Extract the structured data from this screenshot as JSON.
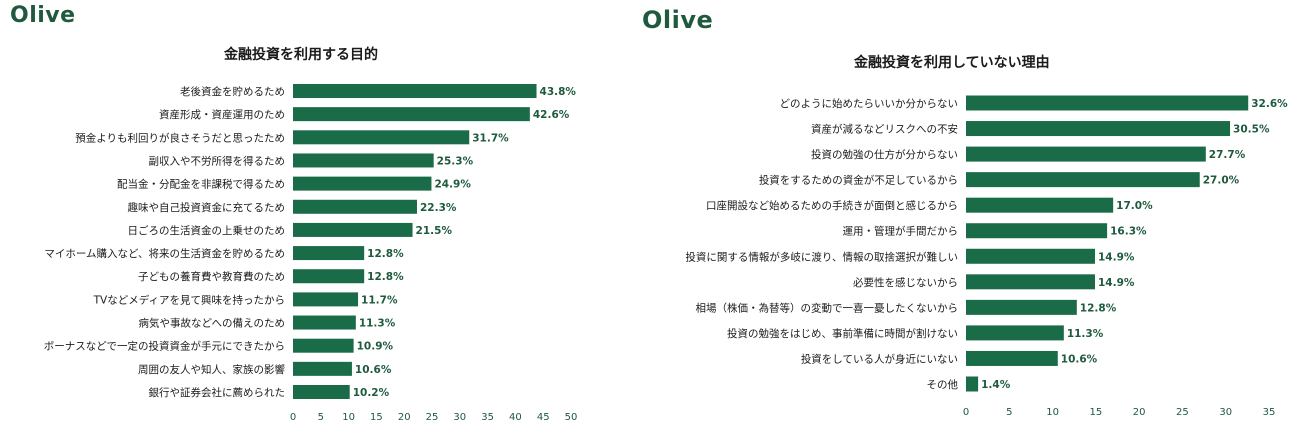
{
  "colors": {
    "bar": "#1a6b47",
    "brand": "#1f5a3e"
  },
  "chart_data": [
    {
      "type": "bar",
      "orientation": "horizontal",
      "brand": "Olive",
      "title": "金融投資を利用する目的",
      "categories": [
        "老後資金を貯めるため",
        "資産形成・資産運用のため",
        "預金よりも利回りが良さそうだと思ったため",
        "副収入や不労所得を得るため",
        "配当金・分配金を非課税で得るため",
        "趣味や自己投資資金に充てるため",
        "日ごろの生活資金の上乗せのため",
        "マイホーム購入など、将来の生活資金を貯めるため",
        "子どもの養育費や教育費のため",
        "TVなどメディアを見て興味を持ったから",
        "病気や事故などへの備えのため",
        "ボーナスなどで一定の投資資金が手元にできたから",
        "周囲の友人や知人、家族の影響",
        "銀行や証券会社に薦められた"
      ],
      "values": [
        43.8,
        42.6,
        31.7,
        25.3,
        24.9,
        22.3,
        21.5,
        12.8,
        12.8,
        11.7,
        11.3,
        10.9,
        10.6,
        10.2
      ],
      "value_labels": [
        "43.8%",
        "42.6%",
        "31.7%",
        "25.3%",
        "24.9%",
        "22.3%",
        "21.5%",
        "12.8%",
        "12.8%",
        "11.7%",
        "11.3%",
        "10.9%",
        "10.6%",
        "10.2%"
      ],
      "xlim": [
        0,
        50
      ],
      "xticks": [
        0,
        5,
        10,
        15,
        20,
        25,
        30,
        35,
        40,
        45,
        50
      ],
      "grid": false,
      "legend": "none"
    },
    {
      "type": "bar",
      "orientation": "horizontal",
      "brand": "Olive",
      "title": "金融投資を利用していない理由",
      "categories": [
        "どのように始めたらいいか分からない",
        "資産が減るなどリスクへの不安",
        "投資の勉強の仕方が分からない",
        "投資をするための資金が不足しているから",
        "口座開設など始めるための手続きが面倒と感じるから",
        "運用・管理が手間だから",
        "投資に関する情報が多岐に渡り、情報の取捨選択が難しい",
        "必要性を感じないから",
        "相場（株価・為替等）の変動で一喜一憂したくないから",
        "投資の勉強をはじめ、事前準備に時間が割けない",
        "投資をしている人が身近にいない",
        "その他"
      ],
      "values": [
        32.6,
        30.5,
        27.7,
        27.0,
        17.0,
        16.3,
        14.9,
        14.9,
        12.8,
        11.3,
        10.6,
        1.4
      ],
      "value_labels": [
        "32.6%",
        "30.5%",
        "27.7%",
        "27.0%",
        "17.0%",
        "16.3%",
        "14.9%",
        "14.9%",
        "12.8%",
        "11.3%",
        "10.6%",
        "1.4%"
      ],
      "xlim": [
        0,
        35
      ],
      "xticks": [
        0,
        5,
        10,
        15,
        20,
        25,
        30,
        35
      ],
      "grid": false,
      "legend": "none"
    }
  ]
}
